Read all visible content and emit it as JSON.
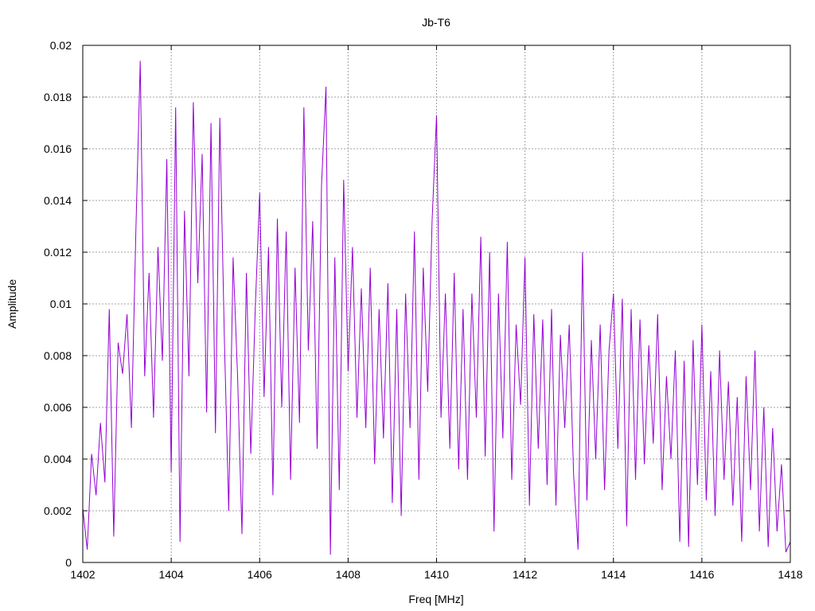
{
  "chart_data": {
    "type": "line",
    "title": "Jb-T6",
    "xlabel": "Freq [MHz]",
    "ylabel": "Amplitude",
    "xlim": [
      1402,
      1418
    ],
    "ylim": [
      0,
      0.02
    ],
    "x_ticks": [
      "1402",
      "1404",
      "1406",
      "1408",
      "1410",
      "1412",
      "1414",
      "1416",
      "1418"
    ],
    "y_ticks": [
      "0",
      "0.002",
      "0.004",
      "0.006",
      "0.008",
      "0.01",
      "0.012",
      "0.014",
      "0.016",
      "0.018",
      "0.02"
    ],
    "grid": true,
    "series_color": "#9400d3",
    "series": [
      {
        "x": [
          1402.0,
          1402.1,
          1402.2,
          1402.3,
          1402.4,
          1402.5,
          1402.6,
          1402.7,
          1402.8,
          1402.9,
          1403.0,
          1403.1,
          1403.2,
          1403.3,
          1403.4,
          1403.5,
          1403.6,
          1403.7,
          1403.8,
          1403.9,
          1404.0,
          1404.1,
          1404.2,
          1404.3,
          1404.4,
          1404.5,
          1404.6,
          1404.7,
          1404.8,
          1404.9,
          1405.0,
          1405.1,
          1405.2,
          1405.3,
          1405.4,
          1405.5,
          1405.6,
          1405.7,
          1405.8,
          1405.9,
          1406.0,
          1406.1,
          1406.2,
          1406.3,
          1406.4,
          1406.5,
          1406.6,
          1406.7,
          1406.8,
          1406.9,
          1407.0,
          1407.1,
          1407.2,
          1407.3,
          1407.4,
          1407.5,
          1407.6,
          1407.7,
          1407.8,
          1407.9,
          1408.0,
          1408.1,
          1408.2,
          1408.3,
          1408.4,
          1408.5,
          1408.6,
          1408.7,
          1408.8,
          1408.9,
          1409.0,
          1409.1,
          1409.2,
          1409.3,
          1409.4,
          1409.5,
          1409.6,
          1409.7,
          1409.8,
          1409.9,
          1410.0,
          1410.1,
          1410.2,
          1410.3,
          1410.4,
          1410.5,
          1410.6,
          1410.7,
          1410.8,
          1410.9,
          1411.0,
          1411.1,
          1411.2,
          1411.3,
          1411.4,
          1411.5,
          1411.6,
          1411.7,
          1411.8,
          1411.9,
          1412.0,
          1412.1,
          1412.2,
          1412.3,
          1412.4,
          1412.5,
          1412.6,
          1412.7,
          1412.8,
          1412.9,
          1413.0,
          1413.1,
          1413.2,
          1413.3,
          1413.4,
          1413.5,
          1413.6,
          1413.7,
          1413.8,
          1413.9,
          1414.0,
          1414.1,
          1414.2,
          1414.3,
          1414.4,
          1414.5,
          1414.6,
          1414.7,
          1414.8,
          1414.9,
          1415.0,
          1415.1,
          1415.2,
          1415.3,
          1415.4,
          1415.5,
          1415.6,
          1415.7,
          1415.8,
          1415.9,
          1416.0,
          1416.1,
          1416.2,
          1416.3,
          1416.4,
          1416.5,
          1416.6,
          1416.7,
          1416.8,
          1416.9,
          1417.0,
          1417.1,
          1417.2,
          1417.3,
          1417.4,
          1417.5,
          1417.6,
          1417.7,
          1417.8,
          1417.9,
          1418.0
        ],
        "y": [
          0.0021,
          0.0005,
          0.0042,
          0.0026,
          0.0054,
          0.0031,
          0.0098,
          0.001,
          0.0085,
          0.0073,
          0.0096,
          0.0052,
          0.0128,
          0.0194,
          0.0072,
          0.0112,
          0.0056,
          0.0122,
          0.0078,
          0.0156,
          0.0035,
          0.0176,
          0.0008,
          0.0136,
          0.0072,
          0.0178,
          0.0108,
          0.0158,
          0.0058,
          0.017,
          0.005,
          0.0172,
          0.0088,
          0.002,
          0.0118,
          0.0072,
          0.0011,
          0.0112,
          0.0042,
          0.0098,
          0.0143,
          0.0064,
          0.0122,
          0.0026,
          0.0133,
          0.006,
          0.0128,
          0.0032,
          0.0114,
          0.0054,
          0.0176,
          0.0082,
          0.0132,
          0.0044,
          0.0146,
          0.0184,
          0.0003,
          0.0118,
          0.0028,
          0.0148,
          0.0074,
          0.0122,
          0.0056,
          0.0106,
          0.0052,
          0.0114,
          0.0038,
          0.0098,
          0.0048,
          0.0108,
          0.0023,
          0.0098,
          0.0018,
          0.0104,
          0.0052,
          0.0128,
          0.0032,
          0.0114,
          0.0066,
          0.0132,
          0.0173,
          0.0056,
          0.0104,
          0.0044,
          0.0112,
          0.0036,
          0.0098,
          0.0032,
          0.0104,
          0.0056,
          0.0126,
          0.0041,
          0.012,
          0.0012,
          0.0104,
          0.0048,
          0.0124,
          0.0032,
          0.0092,
          0.0061,
          0.0118,
          0.0022,
          0.0096,
          0.0044,
          0.0094,
          0.003,
          0.0098,
          0.0022,
          0.0088,
          0.0052,
          0.0092,
          0.0034,
          0.0005,
          0.012,
          0.0024,
          0.0086,
          0.004,
          0.0092,
          0.0028,
          0.0082,
          0.0104,
          0.0044,
          0.0102,
          0.0014,
          0.0098,
          0.0032,
          0.0094,
          0.0038,
          0.0084,
          0.0046,
          0.0096,
          0.0028,
          0.0072,
          0.004,
          0.0082,
          0.0008,
          0.0078,
          0.0006,
          0.0086,
          0.003,
          0.0092,
          0.0024,
          0.0074,
          0.0018,
          0.0082,
          0.0032,
          0.007,
          0.0022,
          0.0064,
          0.0008,
          0.0072,
          0.0028,
          0.0082,
          0.0012,
          0.006,
          0.0006,
          0.0052,
          0.0012,
          0.0038,
          0.0004,
          0.0008
        ]
      }
    ]
  }
}
